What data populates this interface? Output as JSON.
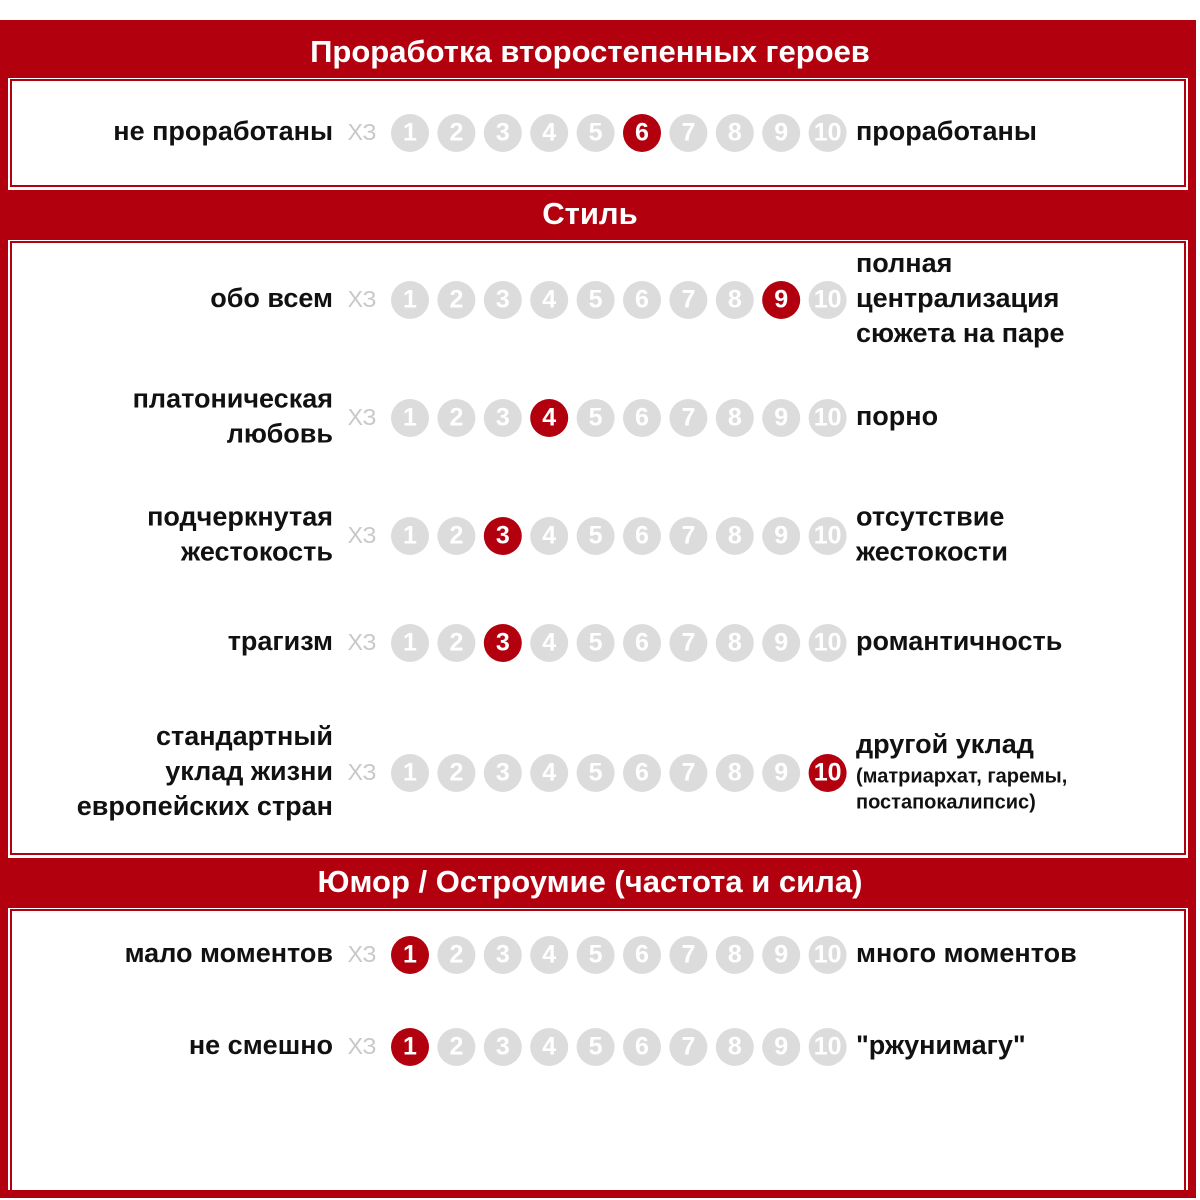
{
  "scale": {
    "unknown": "ХЗ",
    "options": [
      1,
      2,
      3,
      4,
      5,
      6,
      7,
      8,
      9,
      10
    ]
  },
  "sections": [
    {
      "title": "Проработка второстепенных героев",
      "rows": [
        {
          "left": [
            "не проработаны"
          ],
          "right": [
            "проработаны"
          ],
          "selected": 6
        }
      ]
    },
    {
      "title": "Стиль",
      "rows": [
        {
          "left": [
            "обо всем"
          ],
          "right": [
            "полная",
            "централизация",
            "сюжета на паре"
          ],
          "selected": 9
        },
        {
          "left": [
            "платоническая",
            "любовь"
          ],
          "right": [
            "порно"
          ],
          "selected": 4
        },
        {
          "left": [
            "подчеркнутая",
            "жестокость"
          ],
          "right": [
            "отсутствие",
            "жестокости"
          ],
          "selected": 3
        },
        {
          "left": [
            "трагизм"
          ],
          "right": [
            "романтичность"
          ],
          "selected": 3
        },
        {
          "left": [
            "стандартный",
            "уклад жизни",
            "европейских стран"
          ],
          "right": [
            "другой уклад"
          ],
          "right_note": [
            "(матриархат, гаремы,",
            "постапокалипсис)"
          ],
          "selected": 10
        }
      ]
    },
    {
      "title": "Юмор / Остроумие (частота и сила)",
      "rows": [
        {
          "left": [
            "мало моментов"
          ],
          "right": [
            "много моментов"
          ],
          "selected": 1
        },
        {
          "left": [
            "не смешно"
          ],
          "right": [
            "\"ржунимагу\""
          ],
          "selected": 1
        }
      ]
    }
  ]
}
